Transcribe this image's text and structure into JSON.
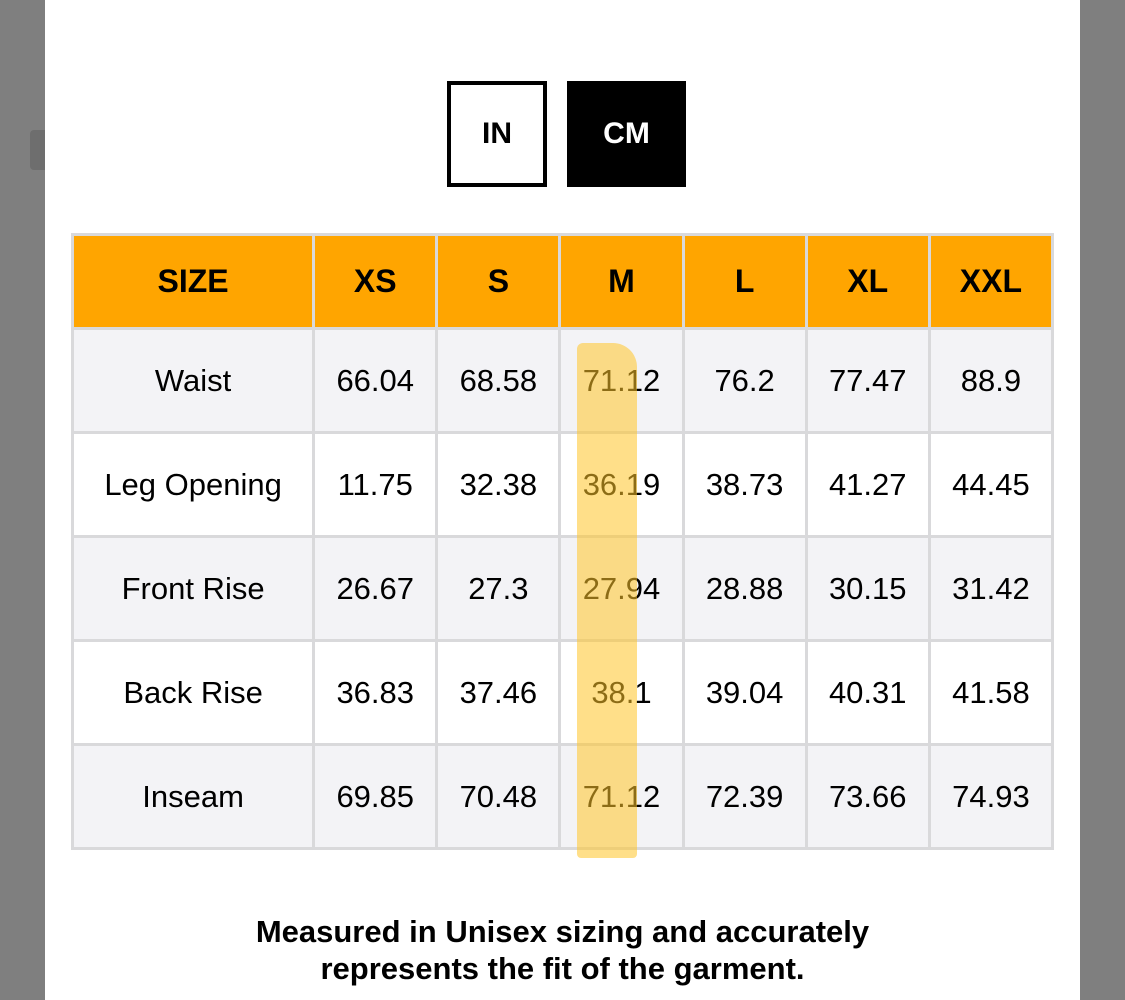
{
  "unit_toggle": {
    "in_label": "IN",
    "cm_label": "CM",
    "selected": "CM"
  },
  "size_table": {
    "headers": [
      "SIZE",
      "XS",
      "S",
      "M",
      "L",
      "XL",
      "XXL"
    ],
    "rows": [
      {
        "label": "Waist",
        "values": [
          "66.04",
          "68.58",
          "71.12",
          "76.2",
          "77.47",
          "88.9"
        ]
      },
      {
        "label": "Leg Opening",
        "values": [
          "11.75",
          "32.38",
          "36.19",
          "38.73",
          "41.27",
          "44.45"
        ]
      },
      {
        "label": "Front Rise",
        "values": [
          "26.67",
          "27.3",
          "27.94",
          "28.88",
          "30.15",
          "31.42"
        ]
      },
      {
        "label": "Back Rise",
        "values": [
          "36.83",
          "37.46",
          "38.1",
          "39.04",
          "40.31",
          "41.58"
        ]
      },
      {
        "label": "Inseam",
        "values": [
          "69.85",
          "70.48",
          "71.12",
          "72.39",
          "73.66",
          "74.93"
        ]
      }
    ],
    "highlighted_column": "M",
    "header_color": "#ffa500",
    "highlight_color": "#ffc428"
  },
  "footnote": {
    "line1": "Measured in Unisex sizing and accurately",
    "line2": "represents the fit of the garment."
  }
}
